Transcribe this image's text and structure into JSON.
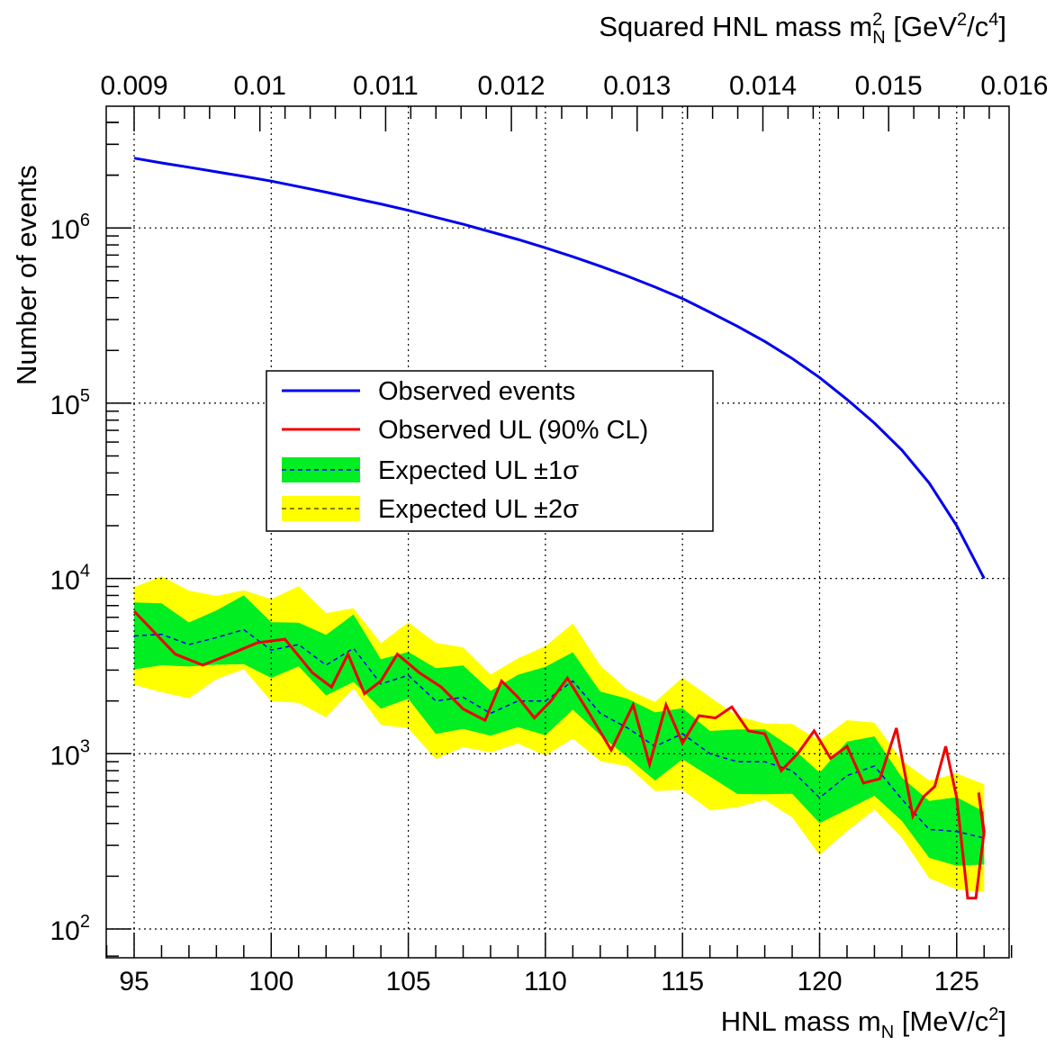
{
  "chart_data": {
    "type": "line",
    "title": "",
    "xlabel": "HNL mass m",
    "xlabel_sub": "N",
    "xlabel_unit_pre": " [MeV/c",
    "xlabel_unit_sup": "2",
    "xlabel_unit_post": "]",
    "xlabel_top": "Squared HNL mass m",
    "xlabel_top_sup": "2",
    "xlabel_top_sub": "N",
    "xlabel_top_unit_pre": " [GeV",
    "xlabel_top_unit_sup1": "2",
    "xlabel_top_unit_mid": "/c",
    "xlabel_top_unit_sup2": "4",
    "xlabel_top_unit_post": "]",
    "ylabel": "Number of events",
    "xlim": [
      94,
      127
    ],
    "ylim": [
      70,
      7000000
    ],
    "yscale": "log",
    "grid": true,
    "legend_position": "center-left",
    "x_ticks": [
      "95",
      "100",
      "105",
      "110",
      "115",
      "120",
      "125"
    ],
    "x_top_ticks": [
      "0.009",
      "0.01",
      "0.011",
      "0.012",
      "0.013",
      "0.014",
      "0.015",
      "0.016"
    ],
    "y_tick_base": "10",
    "y_tick_exponents": [
      "2",
      "3",
      "4",
      "5",
      "6"
    ],
    "x_mass": [
      95,
      96,
      97,
      98,
      99,
      100,
      101,
      102,
      103,
      104,
      105,
      106,
      107,
      108,
      109,
      110,
      111,
      112,
      113,
      114,
      115,
      116,
      117,
      118,
      119,
      120,
      121,
      122,
      123,
      124,
      125,
      126
    ],
    "observed_events_x": [
      95,
      96,
      97,
      98,
      99,
      100,
      101,
      102,
      103,
      104,
      105,
      106,
      107,
      108,
      109,
      110,
      111,
      112,
      113,
      114,
      115,
      116,
      117,
      118,
      119,
      120,
      121,
      122,
      123,
      124,
      125,
      126
    ],
    "observed_events_y": [
      2500000,
      2350000,
      2220000,
      2090000,
      1970000,
      1850000,
      1720000,
      1600000,
      1480000,
      1370000,
      1260000,
      1150000,
      1050000,
      950000,
      860000,
      770000,
      685000,
      605000,
      530000,
      460000,
      395000,
      330000,
      275000,
      225000,
      180000,
      140000,
      105000,
      77000,
      54000,
      35000,
      20000,
      10000
    ],
    "observed_ul": [
      6500,
      3700,
      3200,
      3700,
      4300,
      4500,
      2900,
      2400,
      3700,
      2200,
      2600,
      3700,
      2900,
      2400,
      1800,
      1550,
      2600,
      2100,
      1600,
      2000,
      2700,
      1700,
      1050,
      1900,
      870,
      1900,
      1150,
      1650,
      1600,
      1850,
      1350,
      1300,
      800,
      1000,
      1350,
      940,
      1100,
      680,
      720,
      1400,
      440,
      570,
      650,
      1100,
      560,
      150,
      150,
      360,
      600,
      340
    ],
    "observed_ul_x": [
      95,
      96.5,
      97.5,
      98.5,
      99.5,
      100.5,
      101.5,
      102.2,
      102.8,
      103.4,
      104,
      104.6,
      105.4,
      106.2,
      107,
      107.8,
      108.4,
      109,
      109.6,
      110.2,
      110.8,
      111.6,
      112.4,
      113.2,
      113.8,
      114.4,
      115,
      115.6,
      116.2,
      116.8,
      117.4,
      118,
      118.6,
      119.2,
      119.8,
      120.4,
      121,
      121.6,
      122.2,
      122.8,
      123.4,
      123.8,
      124.2,
      124.6,
      125,
      125.4,
      125.7,
      126,
      125.8,
      126
    ],
    "expected_median": [
      4700,
      5300,
      4800,
      4200,
      4900,
      4600,
      5100,
      4700,
      3900,
      4200,
      2700,
      3200,
      4000,
      3200,
      2500,
      2800,
      2300,
      2000,
      2100,
      1800,
      1700,
      2000,
      2400,
      2000,
      2600,
      1600,
      1700,
      1400,
      1200,
      1100,
      1300,
      1200,
      1000,
      900,
      1100,
      900,
      800,
      700,
      560,
      750,
      650,
      850,
      550,
      420,
      370,
      360,
      330,
      330
    ],
    "series": [
      {
        "name": "Observed events",
        "color": "#0000ee"
      },
      {
        "name": "Observed UL (90% CL)",
        "color": "#ee0000"
      },
      {
        "name": "Expected UL ±1σ",
        "color": "#00ee22"
      },
      {
        "name": "Expected UL ±2σ",
        "color": "#ffff00"
      }
    ]
  },
  "legend": {
    "observed_events": "Observed events",
    "observed_ul": "Observed UL (90% CL)",
    "expected_1sigma": "Expected UL ±1σ",
    "expected_2sigma": "Expected UL ±2σ"
  }
}
